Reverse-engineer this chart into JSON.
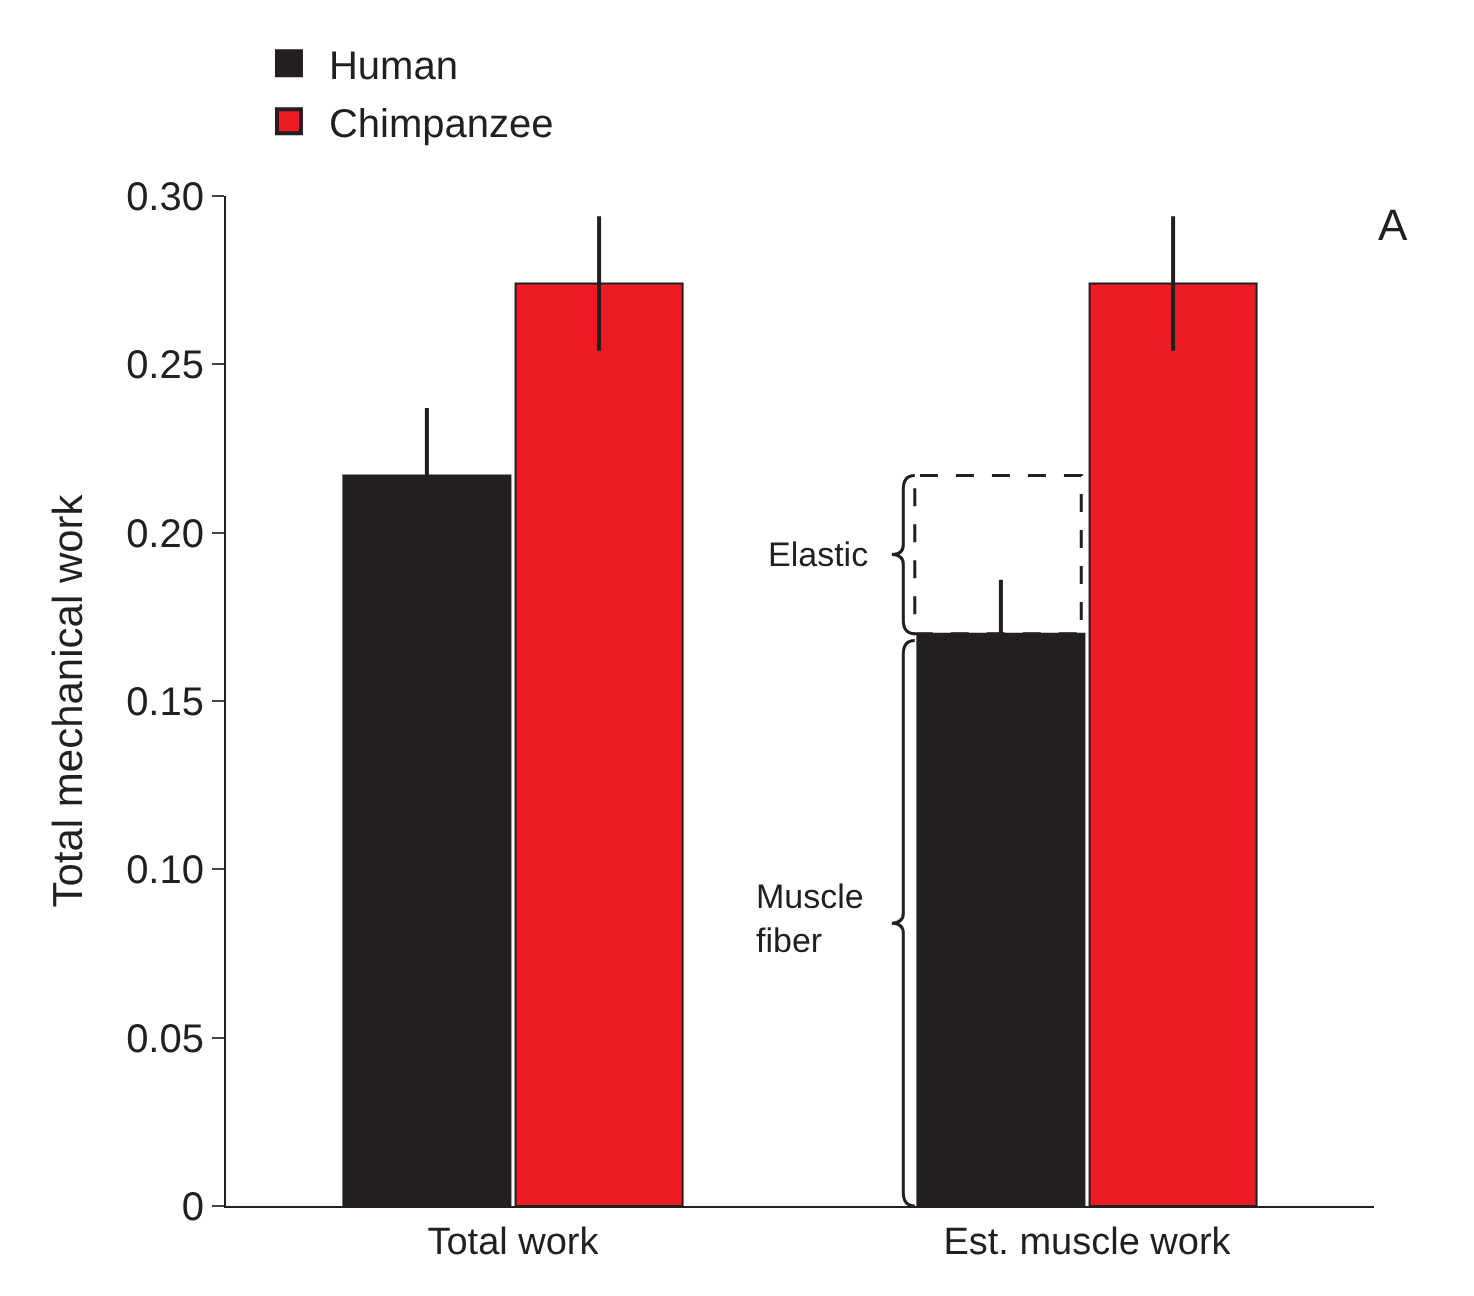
{
  "chart_data": {
    "type": "bar",
    "ylabel": "Total mechanical work",
    "categories": [
      "Total work",
      "Est. muscle work"
    ],
    "series": [
      {
        "name": "Human",
        "color": "#231f20",
        "values": [
          0.217,
          0.17
        ],
        "errors": [
          0.02,
          0.016
        ]
      },
      {
        "name": "Chimpanzee",
        "color": "#ed1c24",
        "values": [
          0.274,
          0.274
        ],
        "errors": [
          0.02,
          0.02
        ]
      }
    ],
    "ylim": [
      0,
      0.3
    ],
    "yticks": [
      {
        "value": 0,
        "label": "0"
      },
      {
        "value": 0.05,
        "label": "0.05"
      },
      {
        "value": 0.1,
        "label": "0.10"
      },
      {
        "value": 0.15,
        "label": "0.15"
      },
      {
        "value": 0.2,
        "label": "0.20"
      },
      {
        "value": 0.25,
        "label": "0.25"
      },
      {
        "value": 0.3,
        "label": "0.30"
      }
    ],
    "annotations": [
      "Elastic",
      "Muscle fiber",
      "A"
    ],
    "legend": "top left"
  }
}
